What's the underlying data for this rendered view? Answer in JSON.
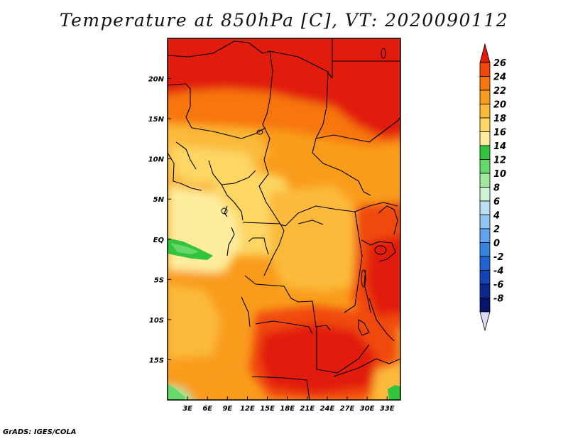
{
  "title": "Temperature at 850hPa [C], VT: 2020090112",
  "credit": "GrADS: IGES/COLA",
  "map": {
    "lon_range": [
      0,
      35
    ],
    "lat_range": [
      -20,
      25
    ],
    "x_ticks": [
      {
        "lon": 3,
        "label": "3E"
      },
      {
        "lon": 6,
        "label": "6E"
      },
      {
        "lon": 9,
        "label": "9E"
      },
      {
        "lon": 12,
        "label": "12E"
      },
      {
        "lon": 15,
        "label": "15E"
      },
      {
        "lon": 18,
        "label": "18E"
      },
      {
        "lon": 21,
        "label": "21E"
      },
      {
        "lon": 24,
        "label": "24E"
      },
      {
        "lon": 27,
        "label": "27E"
      },
      {
        "lon": 30,
        "label": "30E"
      },
      {
        "lon": 33,
        "label": "33E"
      }
    ],
    "y_ticks": [
      {
        "lat": 20,
        "label": "20N"
      },
      {
        "lat": 15,
        "label": "15N"
      },
      {
        "lat": 10,
        "label": "10N"
      },
      {
        "lat": 5,
        "label": "5N"
      },
      {
        "lat": 0,
        "label": "EQ"
      },
      {
        "lat": -5,
        "label": "5S"
      },
      {
        "lat": -10,
        "label": "10S"
      },
      {
        "lat": -15,
        "label": "15S"
      }
    ]
  },
  "colorbar": {
    "labels": [
      "26",
      "24",
      "22",
      "20",
      "18",
      "16",
      "14",
      "12",
      "10",
      "8",
      "6",
      "4",
      "2",
      "0",
      "-2",
      "-4",
      "-6",
      "-8"
    ],
    "colors": [
      "#e11c08",
      "#f0480a",
      "#f7760f",
      "#f99c1c",
      "#fbba3a",
      "#fdd664",
      "#fdec9c",
      "#33c43e",
      "#66d96a",
      "#9fe89c",
      "#cdf2d4",
      "#b9e0f7",
      "#8ec5f2",
      "#5fa4ec",
      "#3a83e2",
      "#1e62d3",
      "#1243b7",
      "#0b2890",
      "#06146c"
    ],
    "under_color": "#dcdcf4"
  }
}
